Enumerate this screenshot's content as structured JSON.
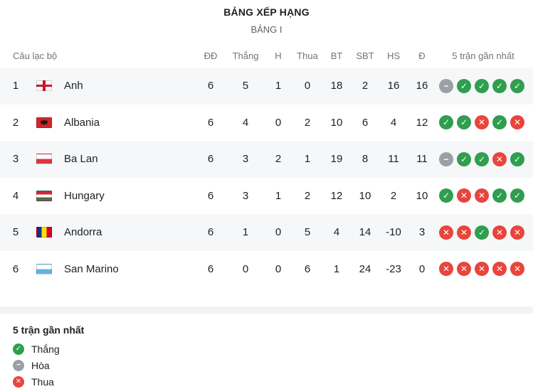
{
  "header": {
    "title": "BẢNG XẾP HẠNG",
    "subtitle": "BẢNG I"
  },
  "table": {
    "columns": {
      "club": "Câu lạc bộ",
      "played": "ĐĐ",
      "won": "Thắng",
      "drawn": "H",
      "lost": "Thua",
      "goals_for": "BT",
      "goals_against": "SBT",
      "goal_diff": "HS",
      "points": "Đ",
      "form": "5 trận gần nhất"
    },
    "rows": [
      {
        "pos": "1",
        "club": "Anh",
        "flag": "england",
        "played": "6",
        "won": "5",
        "drawn": "1",
        "lost": "0",
        "goals_for": "18",
        "goals_against": "2",
        "goal_diff": "16",
        "points": "16",
        "form": [
          "draw",
          "win",
          "win",
          "win",
          "win"
        ]
      },
      {
        "pos": "2",
        "club": "Albania",
        "flag": "albania",
        "played": "6",
        "won": "4",
        "drawn": "0",
        "lost": "2",
        "goals_for": "10",
        "goals_against": "6",
        "goal_diff": "4",
        "points": "12",
        "form": [
          "win",
          "win",
          "loss",
          "win",
          "loss"
        ]
      },
      {
        "pos": "3",
        "club": "Ba Lan",
        "flag": "poland",
        "played": "6",
        "won": "3",
        "drawn": "2",
        "lost": "1",
        "goals_for": "19",
        "goals_against": "8",
        "goal_diff": "11",
        "points": "11",
        "form": [
          "draw",
          "win",
          "win",
          "loss",
          "win"
        ]
      },
      {
        "pos": "4",
        "club": "Hungary",
        "flag": "hungary",
        "played": "6",
        "won": "3",
        "drawn": "1",
        "lost": "2",
        "goals_for": "12",
        "goals_against": "10",
        "goal_diff": "2",
        "points": "10",
        "form": [
          "win",
          "loss",
          "loss",
          "win",
          "win"
        ]
      },
      {
        "pos": "5",
        "club": "Andorra",
        "flag": "andorra",
        "played": "6",
        "won": "1",
        "drawn": "0",
        "lost": "5",
        "goals_for": "4",
        "goals_against": "14",
        "goal_diff": "-10",
        "points": "3",
        "form": [
          "loss",
          "loss",
          "win",
          "loss",
          "loss"
        ]
      },
      {
        "pos": "6",
        "club": "San Marino",
        "flag": "san-marino",
        "played": "6",
        "won": "0",
        "drawn": "0",
        "lost": "6",
        "goals_for": "1",
        "goals_against": "24",
        "goal_diff": "-23",
        "points": "0",
        "form": [
          "loss",
          "loss",
          "loss",
          "loss",
          "loss"
        ]
      }
    ]
  },
  "legend": {
    "title": "5 trận gần nhất",
    "items": [
      {
        "type": "win",
        "label": "Thắng"
      },
      {
        "type": "draw",
        "label": "Hòa"
      },
      {
        "type": "loss",
        "label": "Thua"
      }
    ]
  },
  "form_glyphs": {
    "win": "✓",
    "draw": "−",
    "loss": "✕"
  },
  "colors": {
    "win": "#2f9e4f",
    "draw": "#9aa0a6",
    "loss": "#e8453c"
  }
}
